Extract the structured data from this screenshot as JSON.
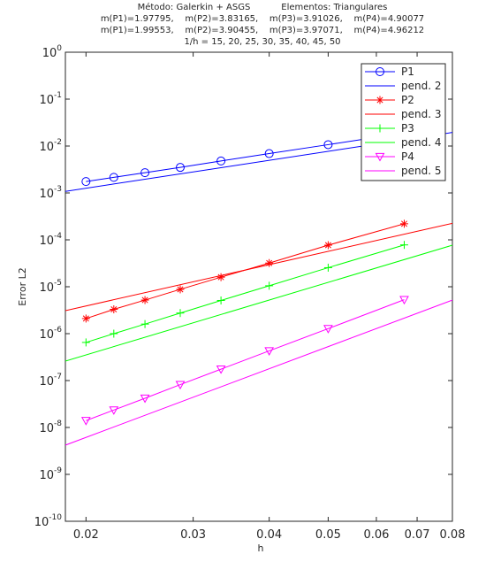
{
  "chart_data": {
    "type": "line",
    "title_lines": [
      "Método: Galerkin + ASGS           Elementos: Triangulares",
      "m(P1)=1.97795,    m(P2)=3.83165,    m(P3)=3.91026,    m(P4)=4.90077",
      "m(P1)=1.99553,    m(P2)=3.90455,    m(P3)=3.97071,    m(P4)=4.96212",
      "1/h = 15, 20, 25, 30, 35, 40, 45, 50"
    ],
    "xlabel": "h",
    "ylabel": "Error L2",
    "xscale": "log",
    "yscale": "log",
    "xlim": [
      0.0185,
      0.08
    ],
    "ylim": [
      1e-10,
      1
    ],
    "x_ticks": [
      0.02,
      0.03,
      0.04,
      0.05,
      0.06,
      0.07,
      0.08
    ],
    "x_tick_labels": [
      "0.02",
      "0.03",
      "0.04",
      "0.05",
      "0.06",
      "0.07",
      "0.08"
    ],
    "y_ticks": [
      1e-10,
      1e-09,
      1e-08,
      1e-07,
      1e-06,
      1e-05,
      0.0001,
      0.001,
      0.01,
      0.1,
      1
    ],
    "y_tick_labels": [
      {
        "base": "10",
        "exp": "-10"
      },
      {
        "base": "10",
        "exp": "-9"
      },
      {
        "base": "10",
        "exp": "-8"
      },
      {
        "base": "10",
        "exp": "-7"
      },
      {
        "base": "10",
        "exp": "-6"
      },
      {
        "base": "10",
        "exp": "-5"
      },
      {
        "base": "10",
        "exp": "-4"
      },
      {
        "base": "10",
        "exp": "-3"
      },
      {
        "base": "10",
        "exp": "-2"
      },
      {
        "base": "10",
        "exp": "-1"
      },
      {
        "base": "10",
        "exp": "0"
      }
    ],
    "grid": false,
    "legend_position": "top-right",
    "series": [
      {
        "name": "P1",
        "kind": "markers-line",
        "marker": "circle",
        "color": "#0000ff",
        "x": [
          0.02,
          0.02222,
          0.025,
          0.02857,
          0.03333,
          0.04,
          0.05,
          0.06667
        ],
        "y": [
          0.00175,
          0.00215,
          0.0027,
          0.0035,
          0.0048,
          0.0069,
          0.0107,
          0.019
        ]
      },
      {
        "name": "pend. 2",
        "kind": "line",
        "color": "#0000ff",
        "x": [
          0.0185,
          0.08
        ],
        "y": [
          0.00108,
          0.0195
        ]
      },
      {
        "name": "P2",
        "kind": "markers-line",
        "marker": "asterisk",
        "color": "#ff0000",
        "x": [
          0.02,
          0.02222,
          0.025,
          0.02857,
          0.03333,
          0.04,
          0.05,
          0.06667
        ],
        "y": [
          2.1e-06,
          3.3e-06,
          5.2e-06,
          8.8e-06,
          1.6e-05,
          3.2e-05,
          7.7e-05,
          0.00022
        ]
      },
      {
        "name": "pend. 3",
        "kind": "line",
        "color": "#ff0000",
        "x": [
          0.0185,
          0.08
        ],
        "y": [
          3.1e-06,
          0.000225
        ]
      },
      {
        "name": "P3",
        "kind": "markers-line",
        "marker": "plus",
        "color": "#00ff00",
        "x": [
          0.02,
          0.02222,
          0.025,
          0.02857,
          0.03333,
          0.04,
          0.05,
          0.06667
        ],
        "y": [
          6.5e-07,
          1e-06,
          1.6e-06,
          2.75e-06,
          5.1e-06,
          1.05e-05,
          2.55e-05,
          7.8e-05
        ]
      },
      {
        "name": "pend. 4",
        "kind": "line",
        "color": "#00ff00",
        "x": [
          0.0185,
          0.08
        ],
        "y": [
          2.6e-07,
          7.7e-05
        ]
      },
      {
        "name": "P4",
        "kind": "markers-line",
        "marker": "triangle-down",
        "color": "#ff00ff",
        "x": [
          0.02,
          0.02222,
          0.025,
          0.02857,
          0.03333,
          0.04,
          0.05,
          0.06667
        ],
        "y": [
          1.4e-08,
          2.35e-08,
          4.2e-08,
          8.2e-08,
          1.75e-07,
          4.3e-07,
          1.28e-06,
          5.3e-06
        ]
      },
      {
        "name": "pend. 5",
        "kind": "line",
        "color": "#ff00ff",
        "x": [
          0.0185,
          0.08
        ],
        "y": [
          4.2e-09,
          5.2e-06
        ]
      }
    ]
  }
}
